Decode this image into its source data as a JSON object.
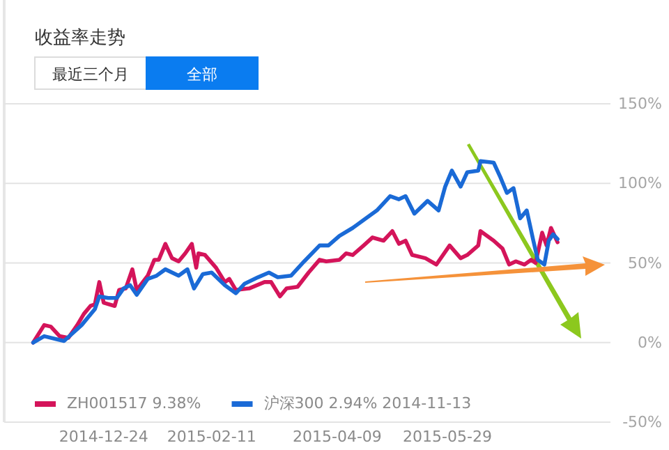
{
  "chart_data": {
    "type": "line",
    "title": "收益率走势",
    "annotations": [
      "最近三个月",
      "全部"
    ],
    "xlim": [
      "2014-11-12",
      "2015-08-11"
    ],
    "xticks": [
      "2014-12-24",
      "2015-02-11",
      "2015-04-09",
      "2015-05-29"
    ],
    "ylim": [
      -50,
      150
    ],
    "yticks": [
      {
        "value": -50,
        "label": "-50%"
      },
      {
        "value": 0,
        "label": "0%"
      },
      {
        "value": 50,
        "label": "50%"
      },
      {
        "value": 100,
        "label": "100%"
      },
      {
        "value": 150,
        "label": "150%"
      }
    ],
    "grid": "y",
    "legend": "bottom left",
    "line_style": "solid",
    "marker": "none",
    "series": [
      {
        "name": "ZH001517 9.38%",
        "color": "#d4145a",
        "x": [
          "2014-11-22",
          "2014-11-27",
          "2014-11-30",
          "2014-12-04",
          "2014-12-08",
          "2014-12-12",
          "2014-12-15",
          "2014-12-18",
          "2014-12-20",
          "2014-12-22",
          "2014-12-24",
          "2014-12-29",
          "2014-12-31",
          "2015-01-03",
          "2015-01-06",
          "2015-01-08",
          "2015-01-13",
          "2015-01-16",
          "2015-01-18",
          "2015-01-21",
          "2015-01-24",
          "2015-01-27",
          "2015-01-30",
          "2015-02-02",
          "2015-02-04",
          "2015-02-05",
          "2015-02-08",
          "2015-02-13",
          "2015-02-17",
          "2015-02-19",
          "2015-02-22",
          "2015-02-28",
          "2015-03-07",
          "2015-03-10",
          "2015-03-14",
          "2015-03-17",
          "2015-03-22",
          "2015-03-27",
          "2015-04-01",
          "2015-04-04",
          "2015-04-10",
          "2015-04-13",
          "2015-04-16",
          "2015-04-21",
          "2015-04-25",
          "2015-04-30",
          "2015-05-04",
          "2015-05-07",
          "2015-05-10",
          "2015-05-13",
          "2015-05-19",
          "2015-05-24",
          "2015-05-30",
          "2015-06-04",
          "2015-06-07",
          "2015-06-12",
          "2015-06-13",
          "2015-06-19",
          "2015-06-23",
          "2015-06-26",
          "2015-06-29",
          "2015-07-03",
          "2015-07-06",
          "2015-07-08",
          "2015-07-11",
          "2015-07-13",
          "2015-07-15",
          "2015-07-18"
        ],
        "values": [
          0,
          11,
          10,
          4,
          3,
          11,
          18,
          23,
          24,
          38,
          25,
          23,
          33,
          34,
          46,
          33,
          42,
          52,
          52,
          62,
          53,
          51,
          56,
          62,
          47,
          56,
          55,
          47,
          38,
          40,
          33,
          34,
          38,
          38,
          29,
          34,
          35,
          44,
          52,
          51,
          52,
          56,
          55,
          61,
          66,
          64,
          70,
          62,
          64,
          55,
          53,
          49,
          61,
          53,
          55,
          61,
          70,
          64,
          59,
          49,
          51,
          49,
          52,
          50,
          69,
          61,
          72,
          63
        ]
      },
      {
        "name": "沪深300 2.94% 2014-11-13",
        "color": "#1a6ad6",
        "x": [
          "2014-11-22",
          "2014-11-27",
          "2014-12-03",
          "2014-12-06",
          "2014-12-14",
          "2014-12-20",
          "2014-12-22",
          "2014-12-26",
          "2014-12-30",
          "2015-01-02",
          "2015-01-05",
          "2015-01-08",
          "2015-01-13",
          "2015-01-17",
          "2015-01-21",
          "2015-01-27",
          "2015-01-31",
          "2015-02-03",
          "2015-02-07",
          "2015-02-11",
          "2015-02-17",
          "2015-02-22",
          "2015-02-26",
          "2015-03-04",
          "2015-03-09",
          "2015-03-13",
          "2015-03-19",
          "2015-03-25",
          "2015-04-01",
          "2015-04-05",
          "2015-04-10",
          "2015-04-16",
          "2015-04-21",
          "2015-04-27",
          "2015-05-03",
          "2015-05-07",
          "2015-05-10",
          "2015-05-14",
          "2015-05-20",
          "2015-05-25",
          "2015-05-28",
          "2015-05-31",
          "2015-06-04",
          "2015-06-07",
          "2015-06-12",
          "2015-06-13",
          "2015-06-19",
          "2015-06-22",
          "2015-06-25",
          "2015-06-28",
          "2015-07-01",
          "2015-07-04",
          "2015-07-07",
          "2015-07-09",
          "2015-07-12",
          "2015-07-14",
          "2015-07-16",
          "2015-07-18"
        ],
        "values": [
          0,
          4,
          2,
          1,
          11,
          21,
          29,
          28,
          28,
          34,
          36,
          30,
          40,
          42,
          46,
          42,
          46,
          34,
          43,
          44,
          36,
          31,
          37,
          41,
          44,
          41,
          42,
          51,
          61,
          61,
          67,
          72,
          77,
          83,
          92,
          90,
          92,
          81,
          89,
          83,
          98,
          108,
          98,
          107,
          108,
          114,
          113,
          104,
          94,
          97,
          78,
          83,
          64,
          52,
          49,
          64,
          68,
          65
        ]
      }
    ]
  }
}
